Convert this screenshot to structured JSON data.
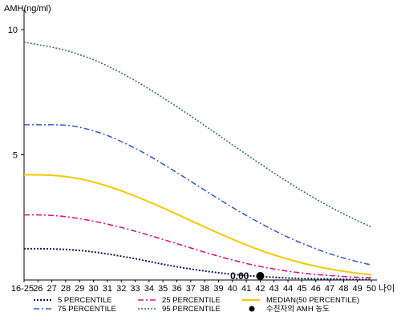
{
  "chart_data": {
    "type": "line",
    "ylabel": "AMH(ng/ml)",
    "xlabel": "나이",
    "categories": [
      "16-25",
      "26",
      "27",
      "28",
      "29",
      "30",
      "31",
      "32",
      "33",
      "34",
      "35",
      "36",
      "37",
      "38",
      "39",
      "40",
      "41",
      "42",
      "43",
      "44",
      "45",
      "46",
      "47",
      "48",
      "49",
      "50"
    ],
    "y_ticks": [
      5,
      10
    ],
    "ylim": [
      0,
      10.8
    ],
    "grid": false,
    "legend_position": "bottom",
    "series": [
      {
        "name": "5 PERCENTILE",
        "color": "#0a1a5c",
        "dash": "2,2",
        "width": 2,
        "values": [
          1.25,
          1.25,
          1.24,
          1.22,
          1.18,
          1.12,
          1.04,
          0.95,
          0.85,
          0.74,
          0.63,
          0.53,
          0.44,
          0.36,
          0.29,
          0.23,
          0.18,
          0.14,
          0.11,
          0.08,
          0.06,
          0.05,
          0.04,
          0.03,
          0.02,
          0.02
        ]
      },
      {
        "name": "25 PERCENTILE",
        "color": "#d6177f",
        "dash": "7,3,2,3",
        "width": 1.6,
        "values": [
          2.6,
          2.6,
          2.58,
          2.53,
          2.45,
          2.35,
          2.23,
          2.1,
          1.95,
          1.79,
          1.62,
          1.45,
          1.28,
          1.11,
          0.95,
          0.8,
          0.66,
          0.54,
          0.44,
          0.35,
          0.28,
          0.22,
          0.18,
          0.14,
          0.11,
          0.09
        ]
      },
      {
        "name": "MEDIAN(50 PERCENTILE)",
        "color": "#f5c800",
        "dash": "",
        "width": 2,
        "values": [
          4.2,
          4.2,
          4.18,
          4.13,
          4.04,
          3.91,
          3.75,
          3.56,
          3.35,
          3.12,
          2.88,
          2.63,
          2.37,
          2.12,
          1.87,
          1.63,
          1.4,
          1.19,
          1.0,
          0.83,
          0.68,
          0.55,
          0.44,
          0.35,
          0.27,
          0.21
        ]
      },
      {
        "name": "75 PERCENTILE",
        "color": "#3a5fc4",
        "dash": "7,3,2,3",
        "width": 1.6,
        "values": [
          6.2,
          6.2,
          6.2,
          6.18,
          6.1,
          5.96,
          5.77,
          5.53,
          5.26,
          4.96,
          4.63,
          4.29,
          3.94,
          3.59,
          3.24,
          2.9,
          2.58,
          2.27,
          1.98,
          1.71,
          1.47,
          1.25,
          1.05,
          0.88,
          0.73,
          0.6
        ]
      },
      {
        "name": "95 PERCENTILE",
        "color": "#2e7d46",
        "dash": "2,2",
        "width": 1.6,
        "values": [
          9.5,
          9.4,
          9.3,
          9.17,
          9.0,
          8.8,
          8.55,
          8.27,
          7.96,
          7.63,
          7.28,
          6.92,
          6.55,
          6.17,
          5.79,
          5.4,
          5.02,
          4.64,
          4.27,
          3.91,
          3.57,
          3.24,
          2.93,
          2.64,
          2.37,
          2.12
        ]
      }
    ],
    "patient": {
      "name": "수진자의 AMH 농도",
      "x": "42",
      "value": 0.0,
      "label": "0.00",
      "color": "#000000"
    }
  }
}
